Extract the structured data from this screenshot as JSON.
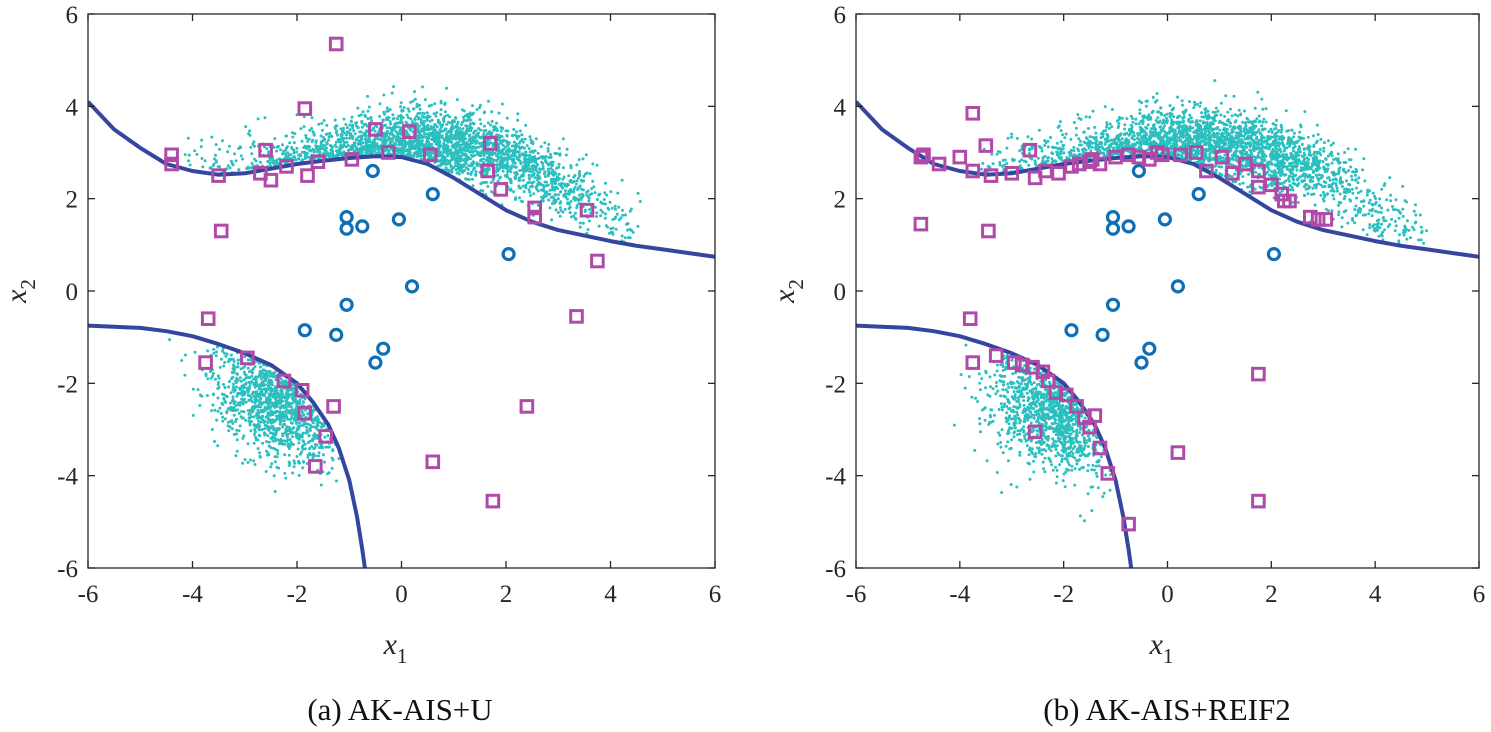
{
  "colors": {
    "samples": "#2bbfbf",
    "boundary": "#3546a0",
    "initial_points": "#0e6fb5",
    "added_points": "#b04aa8",
    "axes": "#262626"
  },
  "chart_data": [
    {
      "type": "scatter",
      "caption": "(a) AK-AIS+U",
      "xlabel": "x",
      "xlabel_sub": "1",
      "ylabel": "x",
      "ylabel_sub": "2",
      "xlim": [
        -6,
        6
      ],
      "ylim": [
        -6,
        6
      ],
      "xticks": [
        -6,
        -4,
        -2,
        0,
        2,
        4,
        6
      ],
      "yticks": [
        -6,
        -4,
        -2,
        0,
        2,
        4,
        6
      ],
      "grid": false,
      "boundary_curves": [
        {
          "x": [
            -6,
            -5.5,
            -5,
            -4.5,
            -4,
            -3.5,
            -3,
            -2.5,
            -2,
            -1.5,
            -1,
            -0.5,
            0,
            0.5,
            1,
            1.5,
            2,
            2.5,
            3,
            3.5,
            4,
            4.5,
            5,
            5.5,
            6
          ],
          "y": [
            4.1,
            3.5,
            3.1,
            2.75,
            2.6,
            2.52,
            2.55,
            2.65,
            2.75,
            2.82,
            2.88,
            2.92,
            2.9,
            2.75,
            2.45,
            2.1,
            1.75,
            1.5,
            1.32,
            1.2,
            1.08,
            0.98,
            0.9,
            0.82,
            0.74
          ]
        },
        {
          "x": [
            -6,
            -5,
            -4.5,
            -4,
            -3.5,
            -3,
            -2.5,
            -2,
            -1.7,
            -1.4,
            -1.2,
            -1,
            -0.85,
            -0.75,
            -0.7
          ],
          "y": [
            -0.75,
            -0.8,
            -0.87,
            -0.98,
            -1.15,
            -1.35,
            -1.6,
            -2.0,
            -2.4,
            -2.9,
            -3.4,
            -4.1,
            -4.9,
            -5.6,
            -6
          ]
        }
      ],
      "sample_clouds": [
        {
          "center": [
            0.4,
            3.2
          ],
          "spread": [
            1.9,
            0.55
          ],
          "arc": "upper",
          "count": 2600,
          "x_range": [
            -4.2,
            4.6
          ]
        },
        {
          "center": [
            -2.4,
            -2.4
          ],
          "spread": [
            0.6,
            0.6
          ],
          "arc": "lower",
          "count": 1100
        }
      ],
      "initial_points": {
        "x": [
          -0.55,
          0.6,
          -1.05,
          -1.05,
          -0.75,
          -0.05,
          2.05,
          0.2,
          -1.05,
          -1.85,
          -1.25,
          -0.35,
          -0.5
        ],
        "y": [
          2.6,
          2.1,
          1.6,
          1.35,
          1.4,
          1.55,
          0.8,
          0.1,
          -0.3,
          -0.85,
          -0.95,
          -1.25,
          -1.55
        ]
      },
      "added_points": {
        "x": [
          -1.25,
          -1.85,
          -4.4,
          -4.4,
          -3.5,
          -2.6,
          -2.7,
          -2.5,
          -2.2,
          -1.8,
          -1.6,
          -0.95,
          -0.5,
          -0.25,
          0.15,
          0.55,
          1.7,
          1.65,
          1.9,
          2.55,
          2.55,
          3.55,
          3.75,
          -3.45,
          -3.7,
          -3.75,
          -2.95,
          -2.25,
          -1.9,
          -1.85,
          -1.3,
          -1.45,
          -1.65,
          0.6,
          2.4,
          3.35,
          1.75
        ],
        "y": [
          5.35,
          3.95,
          2.95,
          2.75,
          2.5,
          3.05,
          2.55,
          2.4,
          2.7,
          2.5,
          2.8,
          2.85,
          3.5,
          3.0,
          3.45,
          2.95,
          3.2,
          2.6,
          2.2,
          1.8,
          1.6,
          1.75,
          0.65,
          1.3,
          -0.6,
          -1.55,
          -1.45,
          -1.95,
          -2.15,
          -2.65,
          -2.5,
          -3.15,
          -3.8,
          -3.7,
          -2.5,
          -0.55,
          -4.55
        ]
      }
    },
    {
      "type": "scatter",
      "caption": "(b) AK-AIS+REIF2",
      "xlabel": "x",
      "xlabel_sub": "1",
      "ylabel": "x",
      "ylabel_sub": "2",
      "xlim": [
        -6,
        6
      ],
      "ylim": [
        -6,
        6
      ],
      "xticks": [
        -6,
        -4,
        -2,
        0,
        2,
        4,
        6
      ],
      "yticks": [
        -6,
        -4,
        -2,
        0,
        2,
        4,
        6
      ],
      "grid": false,
      "boundary_curves": [
        {
          "x": [
            -6,
            -5.5,
            -5,
            -4.5,
            -4,
            -3.5,
            -3,
            -2.5,
            -2,
            -1.5,
            -1,
            -0.5,
            0,
            0.5,
            1,
            1.5,
            2,
            2.5,
            3,
            3.5,
            4,
            4.5,
            5,
            5.5,
            6
          ],
          "y": [
            4.1,
            3.5,
            3.1,
            2.75,
            2.6,
            2.52,
            2.55,
            2.65,
            2.75,
            2.82,
            2.88,
            2.92,
            2.9,
            2.75,
            2.45,
            2.1,
            1.75,
            1.5,
            1.32,
            1.2,
            1.08,
            0.98,
            0.9,
            0.82,
            0.74
          ]
        },
        {
          "x": [
            -6,
            -5,
            -4.5,
            -4,
            -3.5,
            -3,
            -2.5,
            -2,
            -1.7,
            -1.4,
            -1.2,
            -1,
            -0.85,
            -0.75,
            -0.7
          ],
          "y": [
            -0.75,
            -0.8,
            -0.87,
            -0.98,
            -1.15,
            -1.35,
            -1.6,
            -2.0,
            -2.4,
            -2.9,
            -3.4,
            -4.1,
            -4.9,
            -5.6,
            -6
          ]
        }
      ],
      "sample_clouds": [
        {
          "center": [
            0.6,
            3.2
          ],
          "spread": [
            1.9,
            0.55
          ],
          "arc": "upper",
          "count": 2600,
          "x_range": [
            -3.6,
            5.0
          ]
        },
        {
          "center": [
            -2.2,
            -2.6
          ],
          "spread": [
            0.6,
            0.65
          ],
          "arc": "lower",
          "count": 1100
        }
      ],
      "initial_points": {
        "x": [
          -0.55,
          0.6,
          -1.05,
          -1.05,
          -0.75,
          -0.05,
          2.05,
          0.2,
          -1.05,
          -1.85,
          -1.25,
          -0.35,
          -0.5
        ],
        "y": [
          2.6,
          2.1,
          1.6,
          1.35,
          1.4,
          1.55,
          0.8,
          0.1,
          -0.3,
          -0.85,
          -0.95,
          -1.25,
          -1.55
        ]
      },
      "added_points": {
        "x": [
          -3.75,
          -4.75,
          -4.7,
          -4.4,
          -4.0,
          -3.75,
          -3.5,
          -3.4,
          -3.0,
          -2.65,
          -2.55,
          -2.35,
          -2.1,
          -1.85,
          -1.7,
          -1.5,
          -1.45,
          -1.3,
          -1.0,
          -0.75,
          -0.55,
          -0.35,
          -0.2,
          -0.1,
          0.25,
          0.55,
          0.75,
          1.05,
          1.25,
          1.5,
          1.75,
          1.75,
          2.0,
          2.2,
          2.25,
          2.35,
          2.75,
          2.9,
          3.05,
          -3.45,
          -4.75,
          -3.8,
          -3.75,
          -3.3,
          -2.95,
          -2.8,
          -2.6,
          -2.4,
          -2.3,
          -2.15,
          -1.95,
          -1.75,
          -1.6,
          -1.5,
          -1.4,
          -1.3,
          -1.15,
          -2.55,
          -0.75,
          1.75,
          0.2,
          1.75
        ],
        "y": [
          3.85,
          2.9,
          2.95,
          2.75,
          2.9,
          2.6,
          3.15,
          2.5,
          2.55,
          3.05,
          2.45,
          2.6,
          2.55,
          2.7,
          2.75,
          2.8,
          2.85,
          2.75,
          2.9,
          2.95,
          2.9,
          2.85,
          3.0,
          2.95,
          2.95,
          3.0,
          2.6,
          2.9,
          2.55,
          2.75,
          2.6,
          2.25,
          2.3,
          2.1,
          1.95,
          1.95,
          1.6,
          1.55,
          1.55,
          1.3,
          1.45,
          -0.6,
          -1.55,
          -1.4,
          -1.55,
          -1.6,
          -1.65,
          -1.75,
          -1.95,
          -2.2,
          -2.25,
          -2.5,
          -2.75,
          -2.95,
          -2.7,
          -3.4,
          -3.95,
          -3.05,
          -5.05,
          -1.8,
          -3.5,
          -4.55
        ]
      }
    }
  ]
}
